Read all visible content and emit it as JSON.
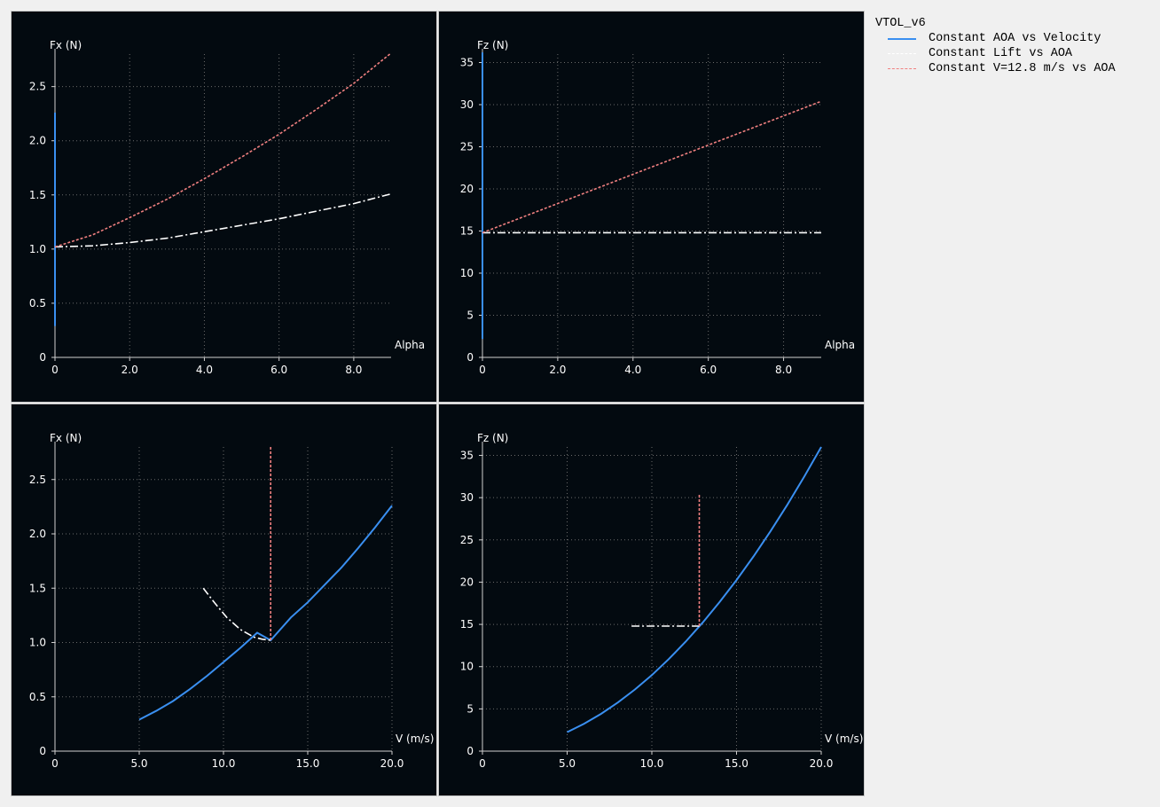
{
  "legend": {
    "title": "VTOL_v6",
    "items": [
      {
        "label": "Constant AOA vs Velocity",
        "color": "#3a8ff0",
        "style": "solid"
      },
      {
        "label": "Constant Lift vs AOA",
        "color": "#ffffff",
        "style": "dashdot"
      },
      {
        "label": "Constant V=12.8 m/s vs AOA",
        "color": "#f08080",
        "style": "dotted"
      }
    ]
  },
  "chart_data": [
    {
      "type": "line",
      "xlabel": "Alpha",
      "ylabel": "Fx (N)",
      "xlim": [
        0,
        9
      ],
      "ylim": [
        0,
        2.8
      ],
      "xticks": [
        0,
        2,
        4,
        6,
        8
      ],
      "xtick_labels": [
        "0",
        "2.0",
        "4.0",
        "6.0",
        "8.0"
      ],
      "yticks": [
        0,
        0.5,
        1,
        1.5,
        2,
        2.5
      ],
      "ytick_labels": [
        "0",
        "0.5",
        "1.0",
        "1.5",
        "2.0",
        "2.5"
      ],
      "grid": true,
      "series": [
        {
          "color": "#3a8ff0",
          "style": "solid",
          "x": [
            0,
            0
          ],
          "y": [
            0.29,
            2.26
          ]
        },
        {
          "color": "#ffffff",
          "style": "dashdot",
          "x": [
            0,
            1,
            2,
            3,
            4,
            5,
            6,
            7,
            8,
            9
          ],
          "y": [
            1.02,
            1.03,
            1.06,
            1.1,
            1.16,
            1.22,
            1.28,
            1.35,
            1.42,
            1.51
          ]
        },
        {
          "color": "#f08080",
          "style": "dotted",
          "x": [
            0,
            1,
            2,
            3,
            4,
            5,
            6,
            7,
            8,
            9
          ],
          "y": [
            1.02,
            1.13,
            1.29,
            1.46,
            1.65,
            1.85,
            2.06,
            2.29,
            2.53,
            2.81
          ]
        }
      ]
    },
    {
      "type": "line",
      "xlabel": "Alpha",
      "ylabel": "Fz (N)",
      "xlim": [
        0,
        9
      ],
      "ylim": [
        0,
        36
      ],
      "xticks": [
        0,
        2,
        4,
        6,
        8
      ],
      "xtick_labels": [
        "0",
        "2.0",
        "4.0",
        "6.0",
        "8.0"
      ],
      "yticks": [
        0,
        5,
        10,
        15,
        20,
        25,
        30,
        35
      ],
      "ytick_labels": [
        "0",
        "5",
        "10",
        "15",
        "20",
        "25",
        "30",
        "35"
      ],
      "grid": true,
      "series": [
        {
          "color": "#3a8ff0",
          "style": "solid",
          "x": [
            0,
            0
          ],
          "y": [
            2.2,
            36.2
          ]
        },
        {
          "color": "#ffffff",
          "style": "dashdot",
          "x": [
            0,
            9
          ],
          "y": [
            14.8,
            14.8
          ]
        },
        {
          "color": "#f08080",
          "style": "dotted",
          "x": [
            0,
            9
          ],
          "y": [
            14.8,
            30.4
          ]
        }
      ]
    },
    {
      "type": "line",
      "xlabel": "V (m/s)",
      "ylabel": "Fx (N)",
      "xlim": [
        0,
        20
      ],
      "ylim": [
        0,
        2.8
      ],
      "xticks": [
        0,
        5,
        10,
        15,
        20
      ],
      "xtick_labels": [
        "0",
        "5.0",
        "10.0",
        "15.0",
        "20.0"
      ],
      "yticks": [
        0,
        0.5,
        1,
        1.5,
        2,
        2.5
      ],
      "ytick_labels": [
        "0",
        "0.5",
        "1.0",
        "1.5",
        "2.0",
        "2.5"
      ],
      "grid": true,
      "series": [
        {
          "color": "#3a8ff0",
          "style": "solid",
          "x": [
            5,
            6,
            7,
            8,
            9,
            10,
            11,
            12,
            12.8,
            14,
            15,
            16,
            17,
            18,
            19,
            20
          ],
          "y": [
            0.29,
            0.37,
            0.46,
            0.57,
            0.69,
            0.82,
            0.95,
            1.09,
            1.02,
            1.23,
            1.37,
            1.53,
            1.69,
            1.87,
            2.06,
            2.26
          ]
        },
        {
          "color": "#ffffff",
          "style": "dashdot",
          "x": [
            8.8,
            9.5,
            10.2,
            11,
            11.8,
            12.3,
            12.8
          ],
          "y": [
            1.5,
            1.36,
            1.23,
            1.12,
            1.05,
            1.03,
            1.02
          ]
        },
        {
          "color": "#f08080",
          "style": "dotted",
          "x": [
            12.8,
            12.8
          ],
          "y": [
            1.02,
            2.81
          ]
        }
      ]
    },
    {
      "type": "line",
      "xlabel": "V (m/s)",
      "ylabel": "Fz (N)",
      "xlim": [
        0,
        20
      ],
      "ylim": [
        0,
        36
      ],
      "xticks": [
        0,
        5,
        10,
        15,
        20
      ],
      "xtick_labels": [
        "0",
        "5.0",
        "10.0",
        "15.0",
        "20.0"
      ],
      "yticks": [
        0,
        5,
        10,
        15,
        20,
        25,
        30,
        35
      ],
      "ytick_labels": [
        "0",
        "5",
        "10",
        "15",
        "20",
        "25",
        "30",
        "35"
      ],
      "grid": true,
      "series": [
        {
          "color": "#3a8ff0",
          "style": "solid",
          "x": [
            5,
            6,
            7,
            8,
            9,
            10,
            11,
            12,
            13,
            14,
            15,
            16,
            17,
            18,
            19,
            20
          ],
          "y": [
            2.25,
            3.24,
            4.41,
            5.76,
            7.29,
            9.0,
            10.89,
            12.96,
            15.21,
            17.64,
            20.25,
            23.04,
            26.01,
            29.16,
            32.49,
            36.0
          ]
        },
        {
          "color": "#ffffff",
          "style": "dashdot",
          "x": [
            8.8,
            12.8
          ],
          "y": [
            14.8,
            14.8
          ]
        },
        {
          "color": "#f08080",
          "style": "dotted",
          "x": [
            12.8,
            12.8
          ],
          "y": [
            14.8,
            30.4
          ]
        }
      ]
    }
  ]
}
